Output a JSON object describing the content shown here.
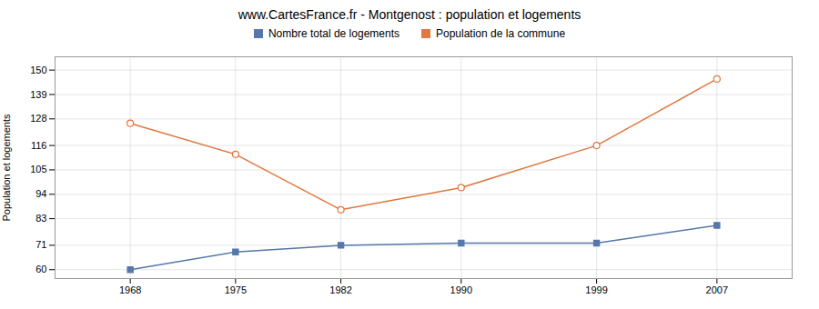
{
  "chart_data": {
    "type": "line",
    "title": "www.CartesFrance.fr - Montgenost : population et logements",
    "ylabel": "Population et logements",
    "x": [
      1968,
      1975,
      1982,
      1990,
      1999,
      2007
    ],
    "series": [
      {
        "name": "Nombre total de logements",
        "color": "#5577aa",
        "marker": "square",
        "values": [
          60,
          68,
          71,
          72,
          72,
          80
        ]
      },
      {
        "name": "Population de la commune",
        "color": "#e07840",
        "marker": "circle",
        "values": [
          126,
          112,
          87,
          97,
          116,
          146
        ]
      }
    ],
    "xlim": [
      1963,
      2012
    ],
    "xticks": [
      1968,
      1975,
      1982,
      1990,
      1999,
      2007
    ],
    "ylim": [
      56,
      156
    ],
    "yticks": [
      60,
      71,
      83,
      94,
      105,
      116,
      128,
      139,
      150
    ],
    "grid": true,
    "legend": "top"
  }
}
